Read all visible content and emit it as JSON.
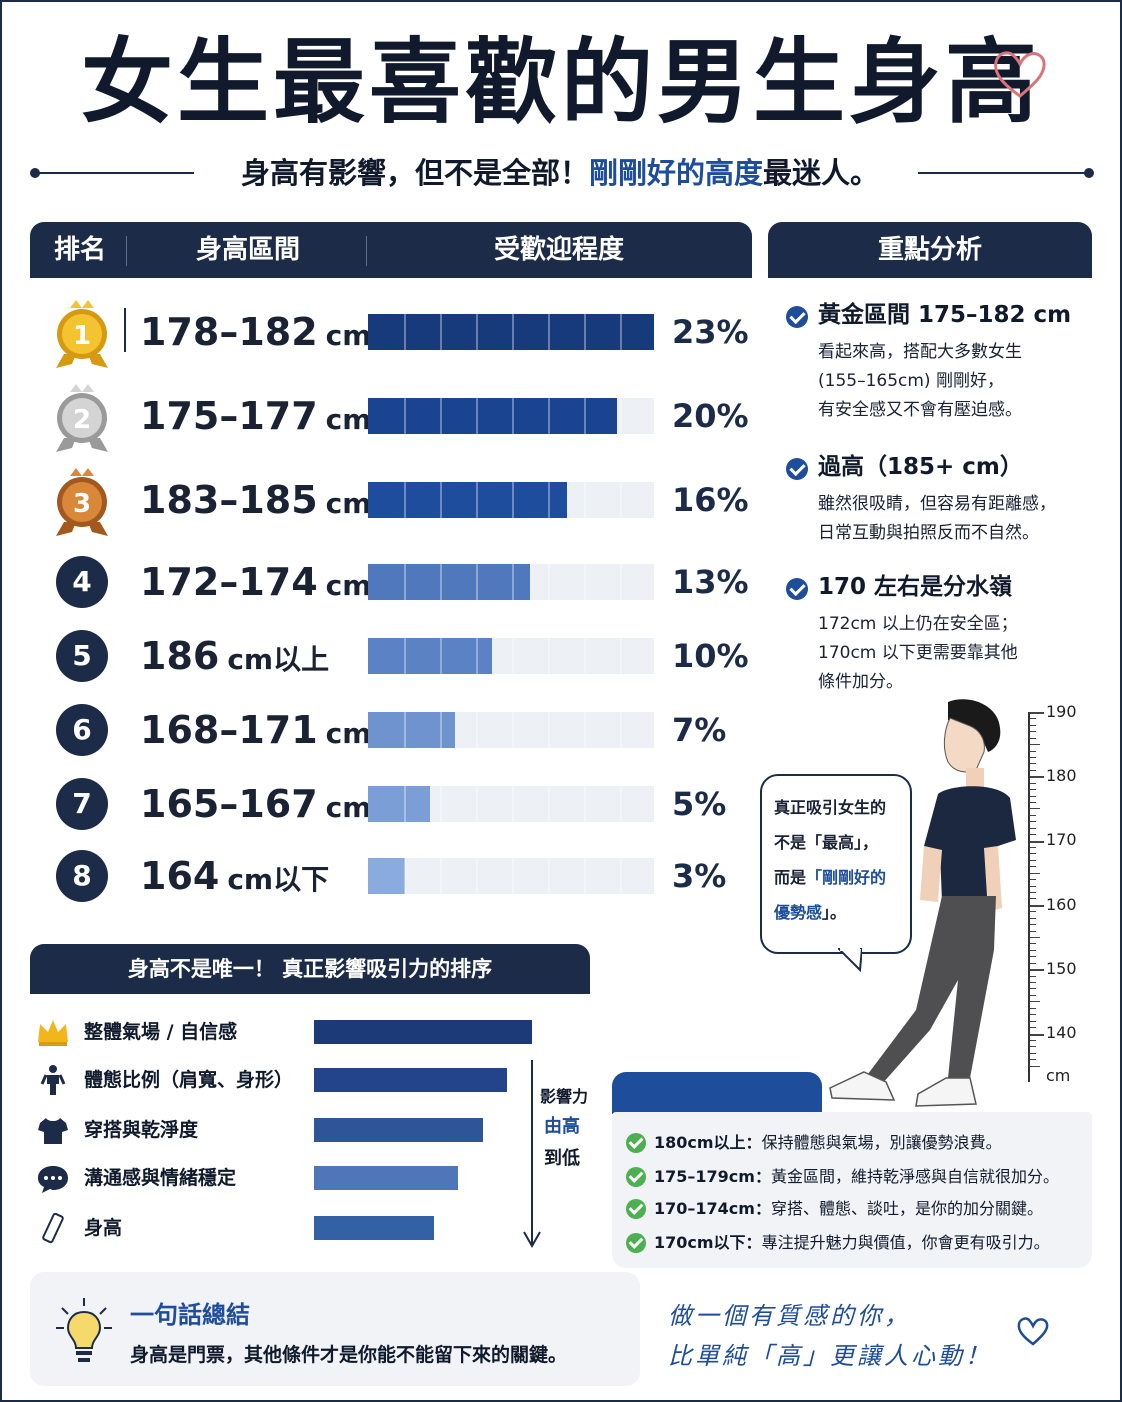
{
  "title": "女生最喜歡的男生身高",
  "subtitle": {
    "before": "身高有影響，但不是全部！",
    "highlight": "剛剛好的高度",
    "after": "最迷人。"
  },
  "ranking_table": {
    "headers": {
      "rank": "排名",
      "range": "身高區間",
      "popularity": "受歡迎程度"
    }
  },
  "chart_data": [
    {
      "type": "bar",
      "orientation": "horizontal",
      "categories": [
        "178–182 cm",
        "175–177 cm",
        "183–185 cm",
        "172–174 cm",
        "186 cm以上",
        "168–171 cm",
        "165–167 cm",
        "164 cm以下"
      ],
      "ranks": [
        "1",
        "2",
        "3",
        "4",
        "5",
        "6",
        "7",
        "8"
      ],
      "values": [
        23,
        20,
        16,
        13,
        10,
        7,
        5,
        3
      ],
      "value_labels": [
        "23%",
        "20%",
        "16%",
        "13%",
        "10%",
        "7%",
        "5%",
        "3%"
      ],
      "medals": [
        "gold",
        "silver",
        "bronze",
        "",
        "",
        "",
        "",
        ""
      ],
      "bar_colors": [
        "#163a7a",
        "#1a4390",
        "#1f4d9e",
        "#4f78bd",
        "#5a82c4",
        "#6f93cf",
        "#7c9ed6",
        "#8aabdd"
      ],
      "xlim": [
        0,
        23
      ],
      "grid": false
    },
    {
      "type": "bar",
      "orientation": "horizontal",
      "title": "身高不是唯一！ 真正影響吸引力的排序",
      "categories": [
        "整體氣場 / 自信感",
        "體態比例（肩寬、身形）",
        "穿搭與乾淨度",
        "溝通感與情緒穩定",
        "身高"
      ],
      "icons": [
        "crown-icon",
        "person-icon",
        "shirt-icon",
        "chat-icon",
        "ruler-icon"
      ],
      "values": [
        5,
        4,
        3,
        2,
        1
      ],
      "bar_colors": [
        "#1c3a78",
        "#23448a",
        "#2f5599",
        "#4f76b8",
        "#3460a6"
      ],
      "annotation": {
        "line1": "影響力",
        "line2": "由高",
        "line3": "到低"
      }
    }
  ],
  "analysis": {
    "header": "重點分析",
    "items": [
      {
        "title": "黃金區間 175–182 cm",
        "desc": [
          "看起來高，搭配大多數女生",
          "(155–165cm) 剛剛好，",
          "有安全感又不會有壓迫感。"
        ]
      },
      {
        "title": "過高（185+ cm）",
        "desc": [
          "雖然很吸睛，但容易有距離感，",
          "日常互動與拍照反而不自然。"
        ]
      },
      {
        "title": "170 左右是分水嶺",
        "desc": [
          "172cm 以上仍在安全區；",
          "170cm 以下更需要靠其他",
          "條件加分。"
        ]
      }
    ]
  },
  "ruler": {
    "labels": [
      "190",
      "180",
      "170",
      "160",
      "150",
      "140"
    ],
    "unit": "cm"
  },
  "bubble": {
    "line1": "真正吸引女生的",
    "line2": "不是「最高」，",
    "line3_before": "而是",
    "line3_highlight": "「剛剛好的",
    "line4_highlight": "優勢感",
    "line4_after": "」。"
  },
  "tips": [
    {
      "range": "180cm以上：",
      "text": "保持體態與氣場，別讓優勢浪費。"
    },
    {
      "range": "175–179cm：",
      "text": "黃金區間，維持乾淨感與自信就很加分。"
    },
    {
      "range": "170–174cm：",
      "text": "穿搭、體態、談吐，是你的加分關鍵。"
    },
    {
      "range": "170cm以下：",
      "text": "專注提升魅力與價值，你會更有吸引力。"
    }
  ],
  "summary": {
    "title": "一句話總結",
    "text": "身高是門票，其他條件才是你能不能留下來的關鍵。"
  },
  "closing": {
    "line1": "做一個有質感的你，",
    "line2": "比單純「高」更讓人心動！"
  },
  "colors": {
    "navy": "#1c2b48",
    "accent": "#1e4d9b",
    "track": "#edf0f4",
    "check_green": "#4caf50"
  }
}
